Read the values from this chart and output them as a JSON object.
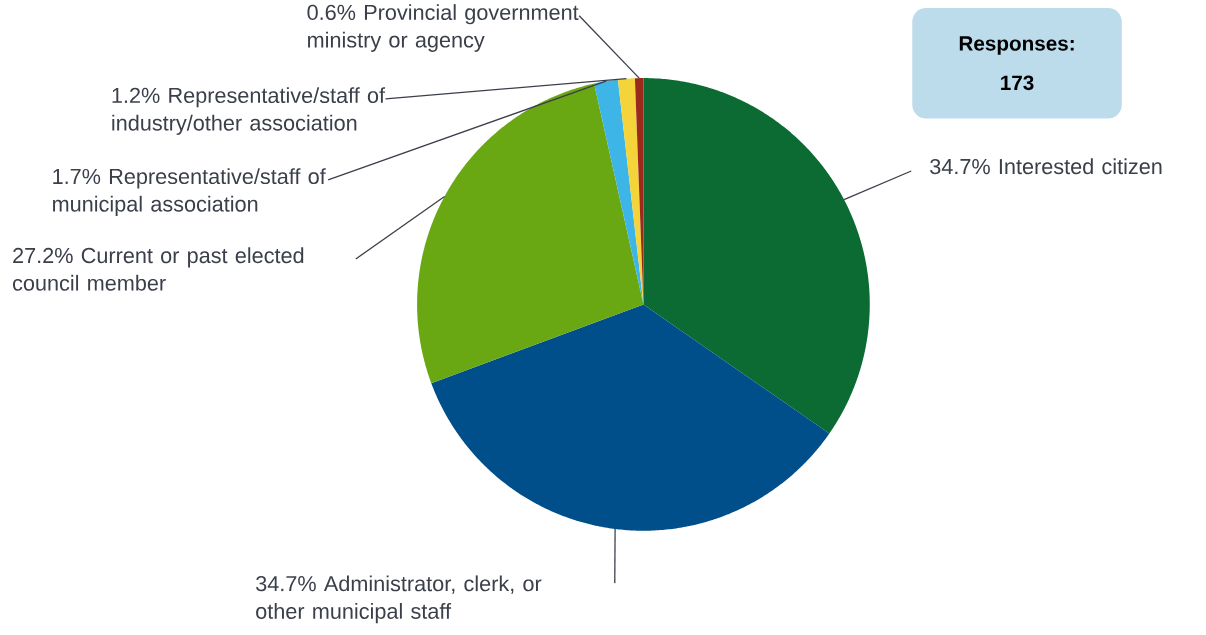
{
  "chart_data": {
    "type": "pie",
    "categories": [
      "Interested citizen",
      "Administrator, clerk, or other municipal staff",
      "Current or past elected council member",
      "Representative/staff of municipal association",
      "Representative/staff of industry/other association",
      "Provincial government ministry or agency"
    ],
    "values": [
      34.7,
      34.7,
      27.2,
      1.7,
      1.2,
      0.6
    ],
    "value_labels": [
      "34.7%",
      "34.7%",
      "27.2%",
      "1.7%",
      "1.2%",
      "0.6%"
    ],
    "colors": [
      "#0b6b33",
      "#004f8a",
      "#6aa813",
      "#3db5e6",
      "#f5d43b",
      "#9b2a1c"
    ],
    "annotations": [
      "Responses: 173"
    ]
  }
}
